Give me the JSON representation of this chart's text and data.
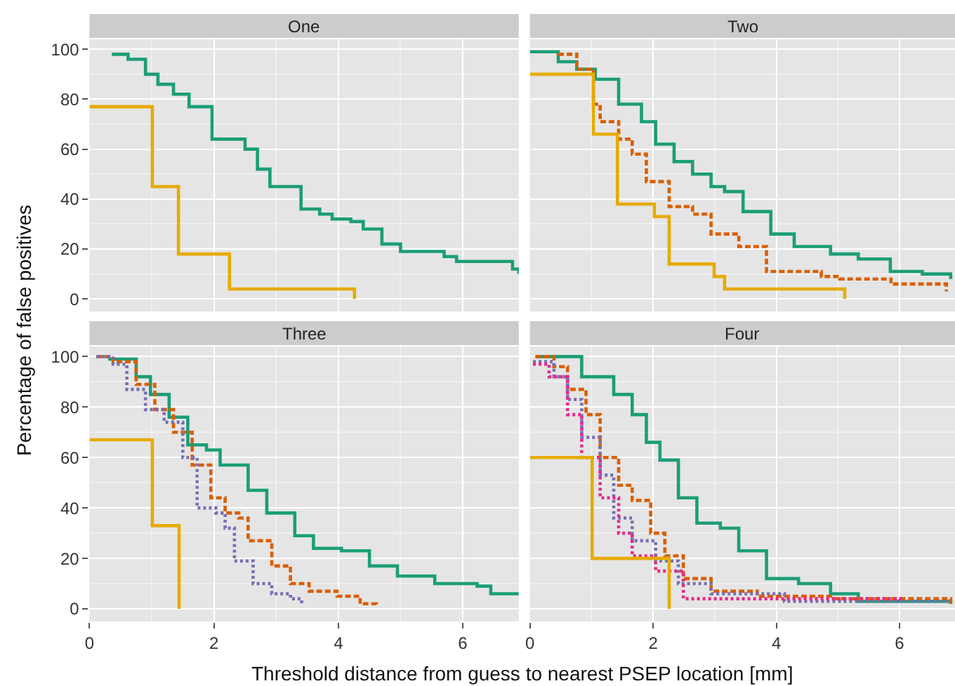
{
  "chart_data": [
    {
      "type": "step",
      "title": "One",
      "ylabel": "Percentage of false positives",
      "xlim": [
        0,
        6.9
      ],
      "ylim": [
        -5,
        104
      ],
      "xticks": [
        0,
        2,
        4,
        6
      ],
      "yticks": [
        0,
        20,
        40,
        60,
        80,
        100
      ],
      "grid": true,
      "tick_labels": "y",
      "series": [
        {
          "color": "#1b9e77",
          "line_style": "solid",
          "x": [
            0.36,
            0.62,
            0.9,
            1.1,
            1.35,
            1.6,
            1.97,
            2.5,
            2.7,
            2.9,
            3.4,
            3.7,
            3.9,
            4.2,
            4.4,
            4.7,
            5.0,
            5.7,
            5.9,
            6.8,
            6.9
          ],
          "values": [
            98,
            96,
            90,
            86,
            82,
            77,
            64,
            60,
            52,
            45,
            36,
            34,
            32,
            31,
            28,
            22,
            19,
            17,
            15,
            12,
            10
          ]
        },
        {
          "color": "#e6ab02",
          "line_style": "solid",
          "x": [
            0,
            1.01,
            1.43,
            2.25,
            4.26
          ],
          "values": [
            77,
            45,
            18,
            4,
            0
          ]
        }
      ]
    },
    {
      "type": "step",
      "title": "Two",
      "xlim": [
        0,
        6.9
      ],
      "ylim": [
        -5,
        104
      ],
      "xticks": [
        0,
        2,
        4,
        6
      ],
      "yticks": [
        0,
        20,
        40,
        60,
        80,
        100
      ],
      "grid": true,
      "tick_labels": false,
      "series": [
        {
          "color": "#1b9e77",
          "line_style": "solid",
          "x": [
            0,
            0.24,
            0.46,
            0.76,
            1.06,
            1.44,
            1.81,
            2.04,
            2.34,
            2.64,
            2.94,
            3.16,
            3.46,
            3.91,
            4.29,
            4.88,
            5.33,
            5.85,
            6.37,
            6.83
          ],
          "values": [
            99,
            99,
            95,
            92,
            88,
            78,
            71,
            62,
            55,
            50,
            45,
            43,
            35,
            26,
            21,
            18,
            16,
            11,
            10,
            8
          ]
        },
        {
          "color": "#d95f02",
          "line_style": "dashed",
          "x": [
            0.46,
            0.76,
            1.03,
            1.14,
            1.44,
            1.66,
            1.89,
            2.26,
            2.64,
            2.94,
            3.39,
            3.84,
            4.73,
            5.03,
            5.86,
            6.76
          ],
          "values": [
            98,
            92,
            78,
            71,
            64,
            58,
            47,
            37,
            34,
            26,
            21,
            11,
            9,
            8,
            6,
            3
          ]
        },
        {
          "color": "#e6ab02",
          "line_style": "solid",
          "x": [
            0,
            1.03,
            1.42,
            2.02,
            2.26,
            2.99,
            3.16,
            5.11
          ],
          "values": [
            90,
            66,
            38,
            33,
            14,
            9,
            4,
            0
          ]
        }
      ]
    },
    {
      "type": "step",
      "title": "Three",
      "xlabel": "Threshold distance from guess to nearest PSEP location [mm]",
      "xlim": [
        0,
        6.9
      ],
      "ylim": [
        -5,
        104
      ],
      "xticks": [
        0,
        2,
        4,
        6
      ],
      "yticks": [
        0,
        20,
        40,
        60,
        80,
        100
      ],
      "grid": true,
      "series": [
        {
          "color": "#1b9e77",
          "line_style": "solid",
          "x": [
            0.3,
            0.45,
            0.75,
            0.98,
            1.28,
            1.58,
            1.88,
            2.1,
            2.55,
            2.85,
            3.3,
            3.6,
            4.05,
            4.5,
            4.95,
            5.55,
            6.23,
            6.45,
            6.9
          ],
          "values": [
            99,
            99,
            92,
            85,
            76,
            65,
            63,
            57,
            47,
            38,
            29,
            24,
            23,
            17,
            13,
            10,
            9,
            6,
            6
          ]
        },
        {
          "color": "#d95f02",
          "line_style": "dashed",
          "x": [
            0.11,
            0.38,
            0.75,
            1.05,
            1.35,
            1.65,
            1.95,
            2.18,
            2.4,
            2.55,
            2.93,
            3.23,
            3.53,
            3.98,
            4.35,
            4.61
          ],
          "values": [
            100,
            98,
            89,
            79,
            70,
            57,
            44,
            38,
            36,
            27,
            17,
            10,
            7,
            5,
            2,
            1
          ]
        },
        {
          "color": "#7570b3",
          "line_style": "dotted",
          "x": [
            0.11,
            0.38,
            0.6,
            0.9,
            1.2,
            1.5,
            1.73,
            2.03,
            2.18,
            2.33,
            2.63,
            2.93,
            3.23,
            3.41
          ],
          "values": [
            100,
            97,
            87,
            79,
            74,
            60,
            40,
            38,
            32,
            19,
            10,
            6,
            4,
            2
          ]
        },
        {
          "color": "#e6ab02",
          "line_style": "solid",
          "x": [
            0,
            1.01,
            1.44
          ],
          "values": [
            67,
            33,
            0
          ]
        }
      ]
    },
    {
      "type": "step",
      "title": "Four",
      "xlim": [
        0,
        6.9
      ],
      "ylim": [
        -5,
        104
      ],
      "xticks": [
        0,
        2,
        4,
        6
      ],
      "yticks": [
        0,
        20,
        40,
        60,
        80,
        100
      ],
      "grid": true,
      "tick_labels": "x",
      "series": [
        {
          "color": "#1b9e77",
          "line_style": "solid",
          "x": [
            0.09,
            0.61,
            0.84,
            1.36,
            1.66,
            1.89,
            2.11,
            2.41,
            2.71,
            3.09,
            3.39,
            3.84,
            4.36,
            4.88,
            5.33,
            6.83
          ],
          "values": [
            100,
            100,
            92,
            85,
            77,
            66,
            59,
            44,
            34,
            32,
            23,
            12,
            10,
            6,
            3,
            2
          ]
        },
        {
          "color": "#d95f02",
          "line_style": "dashed",
          "x": [
            0.09,
            0.39,
            0.61,
            0.91,
            1.14,
            1.44,
            1.66,
            1.96,
            2.19,
            2.49,
            2.94,
            3.69,
            4.88,
            6.83
          ],
          "values": [
            100,
            96,
            87,
            77,
            60,
            49,
            43,
            30,
            21,
            12,
            7,
            5,
            4,
            2
          ]
        },
        {
          "color": "#7570b3",
          "line_style": "dotted",
          "x": [
            0.05,
            0.39,
            0.61,
            0.84,
            1.14,
            1.36,
            1.66,
            2.04,
            2.41,
            2.94,
            4.13,
            6.76
          ],
          "values": [
            98,
            92,
            83,
            68,
            53,
            36,
            27,
            19,
            10,
            6,
            3,
            2
          ]
        },
        {
          "color": "#e7298a",
          "line_style": "dotted",
          "x": [
            0.05,
            0.31,
            0.61,
            0.84,
            1.14,
            1.44,
            1.66,
            2.04,
            2.49,
            3.39,
            6.01
          ],
          "values": [
            97,
            92,
            77,
            60,
            44,
            30,
            21,
            15,
            4,
            4,
            3
          ]
        },
        {
          "color": "#e6ab02",
          "line_style": "solid",
          "x": [
            0,
            1.01,
            2.26
          ],
          "values": [
            60,
            20,
            0
          ]
        }
      ]
    }
  ]
}
